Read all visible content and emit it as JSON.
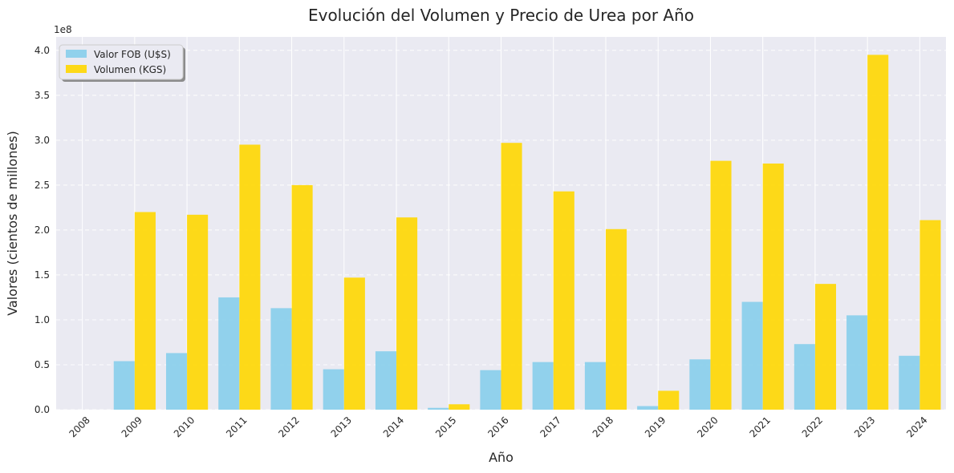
{
  "chart_data": {
    "type": "bar",
    "title": "Evolución del Volumen y Precio de Urea por Año",
    "xlabel": "Año",
    "ylabel": "Valores (cientos de millones)",
    "offset_label": "1e8",
    "categories": [
      "2008",
      "2009",
      "2010",
      "2011",
      "2012",
      "2013",
      "2014",
      "2015",
      "2016",
      "2017",
      "2018",
      "2019",
      "2020",
      "2021",
      "2022",
      "2023",
      "2024"
    ],
    "series": [
      {
        "name": "Valor FOB (U$S)",
        "color": "#87CEEB",
        "values": [
          0,
          54000000,
          63000000,
          125000000,
          113000000,
          45000000,
          65000000,
          2000000,
          44000000,
          53000000,
          53000000,
          4000000,
          56000000,
          120000000,
          73000000,
          105000000,
          60000000
        ]
      },
      {
        "name": "Volumen (KGS)",
        "color": "#FFD700",
        "values": [
          0,
          220000000,
          217000000,
          295000000,
          250000000,
          147000000,
          214000000,
          6000000,
          297000000,
          243000000,
          201000000,
          21000000,
          277000000,
          274000000,
          140000000,
          395000000,
          211000000
        ]
      }
    ],
    "ylim": [
      0,
      415000000
    ],
    "yticks": [
      0,
      50000000,
      100000000,
      150000000,
      200000000,
      250000000,
      300000000,
      350000000,
      400000000
    ],
    "ytick_labels": [
      "0.0",
      "0.5",
      "1.0",
      "1.5",
      "2.0",
      "2.5",
      "3.0",
      "3.5",
      "4.0"
    ],
    "grid": true,
    "legend_position": "top-left",
    "background_color": "#EAEAF2"
  }
}
